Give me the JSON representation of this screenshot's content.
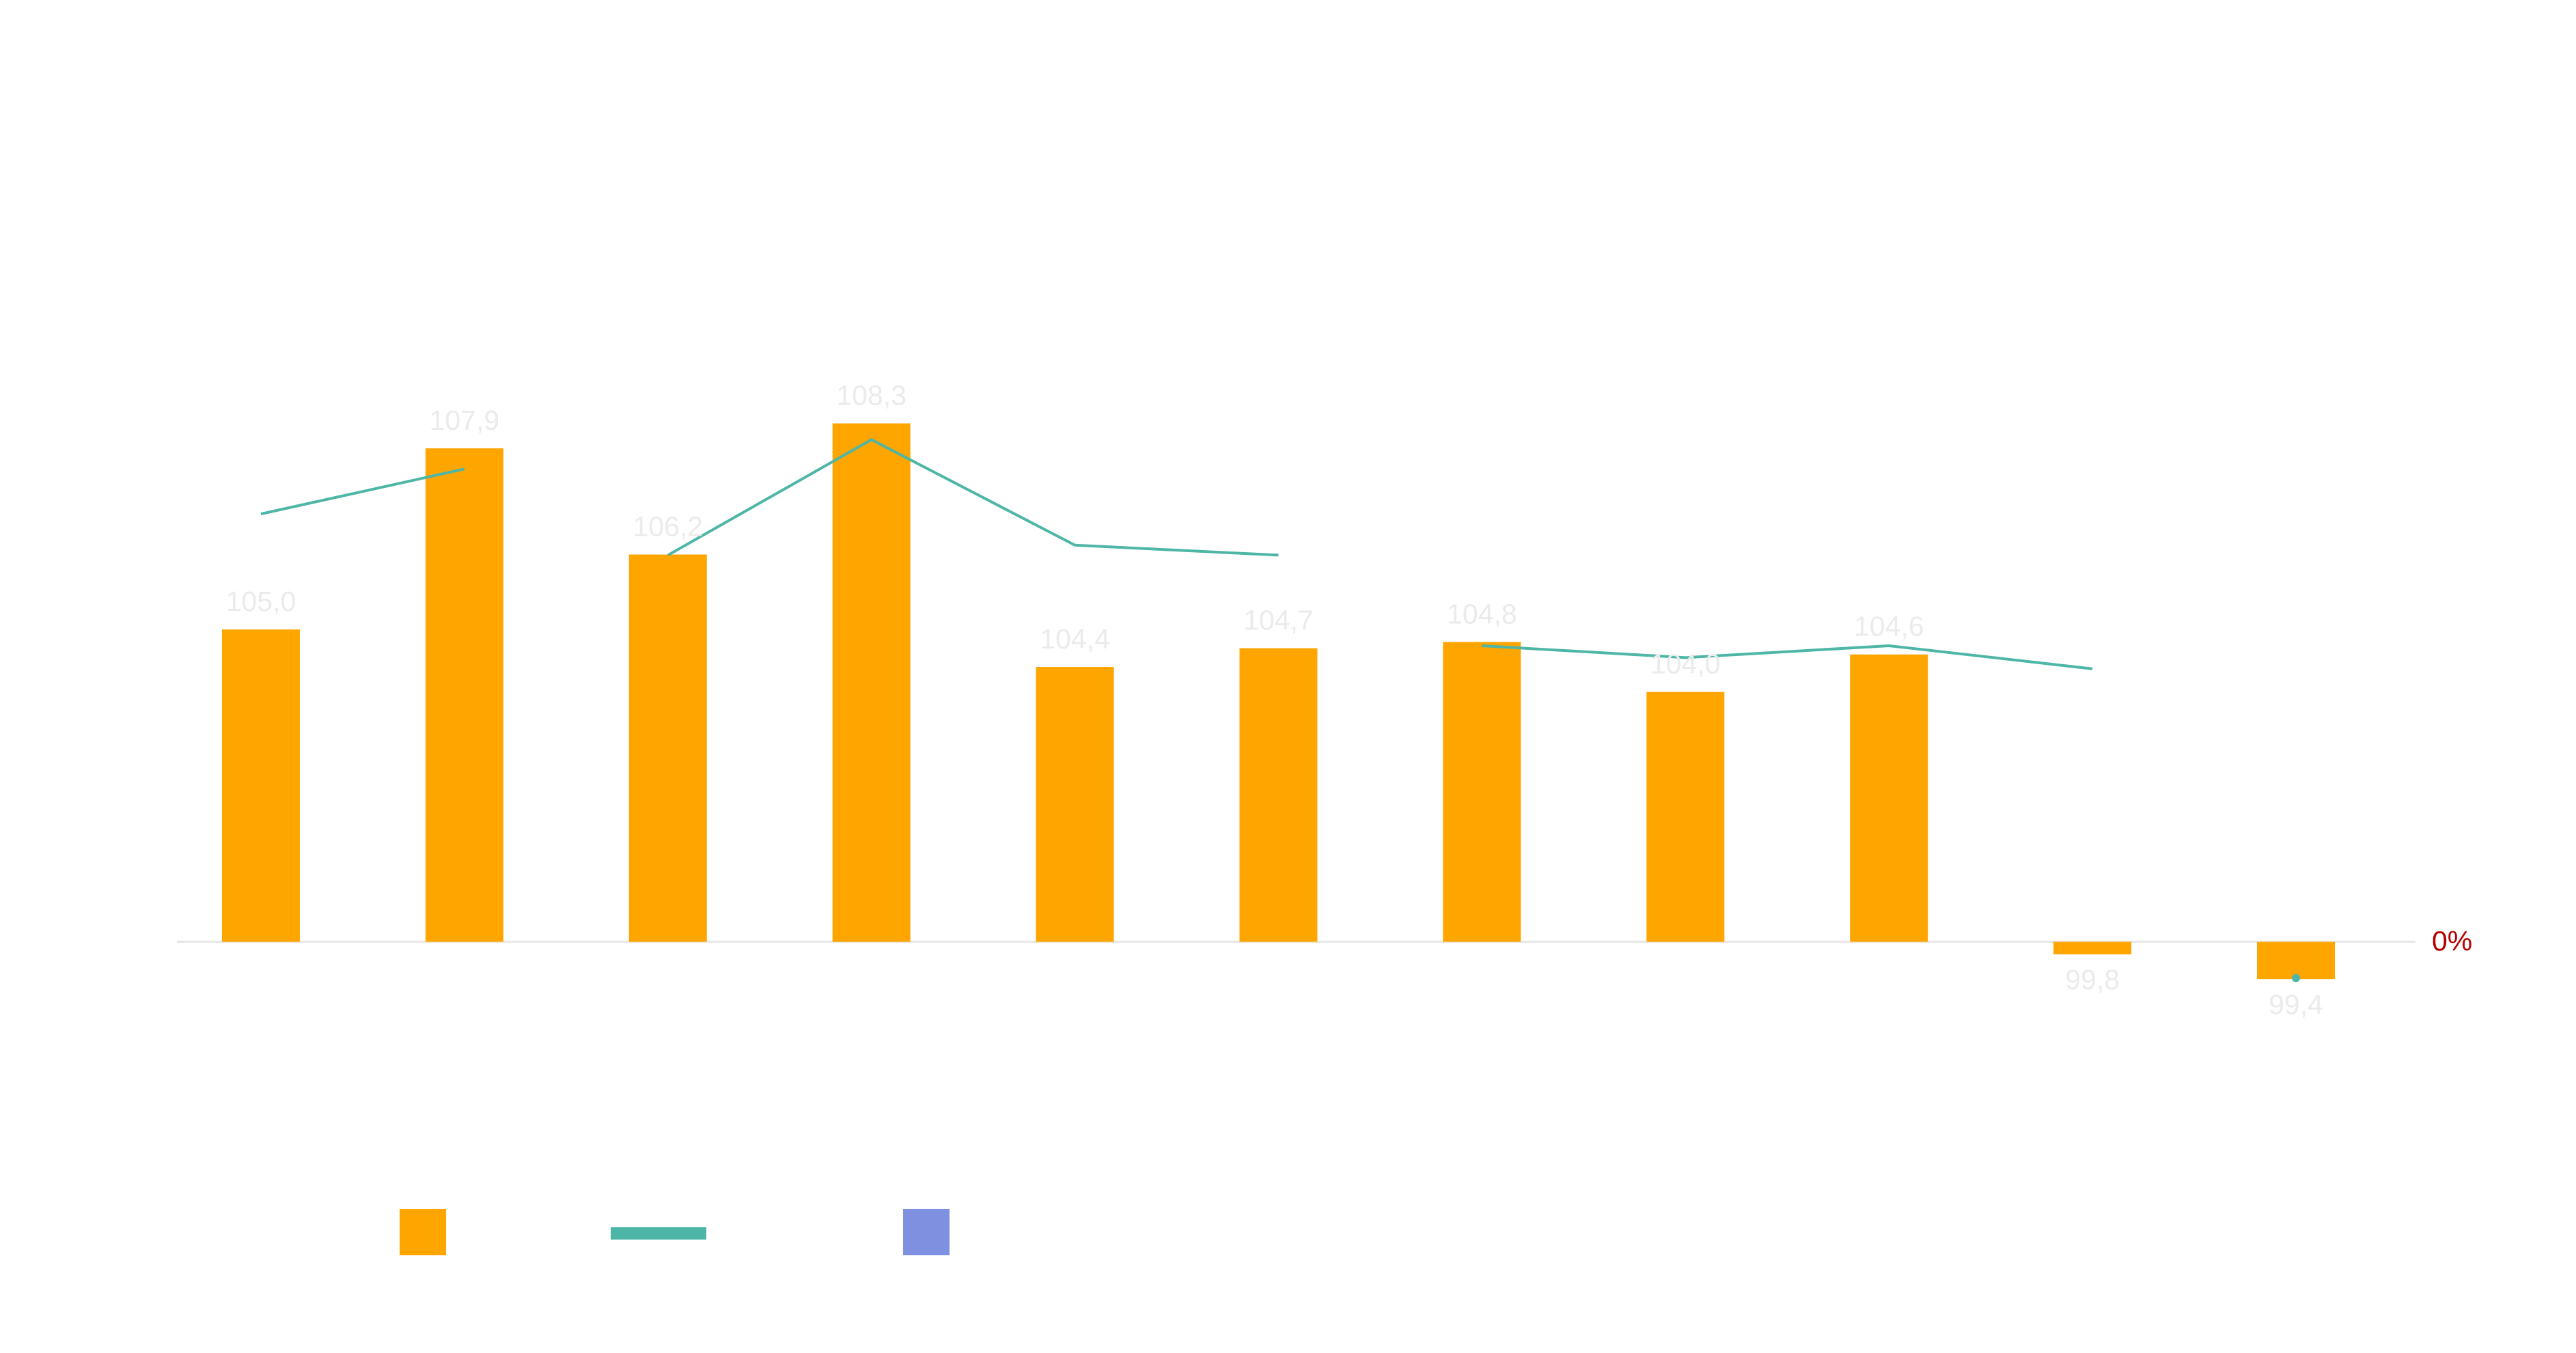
{
  "chart_data": {
    "type": "bar",
    "categories": [
      null,
      null,
      null,
      null,
      null,
      null,
      null,
      null,
      null,
      null,
      null
    ],
    "ylim": [
      98,
      113
    ],
    "yticks": [
      {
        "value": 100,
        "label": "0%"
      }
    ],
    "tick_color": "#b30000",
    "series": [
      {
        "type": "bar",
        "color": "#ffa500",
        "values": [
          105.0,
          107.9,
          106.2,
          108.3,
          104.4,
          104.7,
          104.8,
          104.0,
          104.6,
          99.8,
          99.4
        ],
        "value_labels": [
          "105,0",
          "107,9",
          "106,2",
          "108,3",
          "104,4",
          "104,7",
          "104,8",
          "104,0",
          "104,6",
          "99,8",
          "99,4"
        ]
      },
      {
        "type": "line",
        "color": "#4db6a6",
        "values": [
          106.85,
          107.57,
          null,
          null,
          null,
          null,
          null,
          null,
          null,
          null,
          null
        ]
      },
      {
        "type": "line",
        "color": "#4db6a6",
        "values": [
          null,
          null,
          106.19,
          108.04,
          106.35,
          106.19,
          null,
          null,
          null,
          null,
          null
        ]
      },
      {
        "type": "line",
        "color": "#4db6a6",
        "values": [
          null,
          null,
          null,
          null,
          null,
          null,
          104.74,
          104.55,
          104.74,
          104.37,
          null
        ]
      },
      {
        "type": "line",
        "color": "#4db6a6",
        "values": [
          null,
          null,
          null,
          null,
          null,
          null,
          null,
          null,
          null,
          null,
          99.42
        ]
      },
      {
        "type": "bar",
        "color": "#8090e0",
        "values": [
          null,
          null,
          null,
          null,
          null,
          null,
          null,
          null,
          null,
          null,
          null
        ]
      }
    ]
  }
}
